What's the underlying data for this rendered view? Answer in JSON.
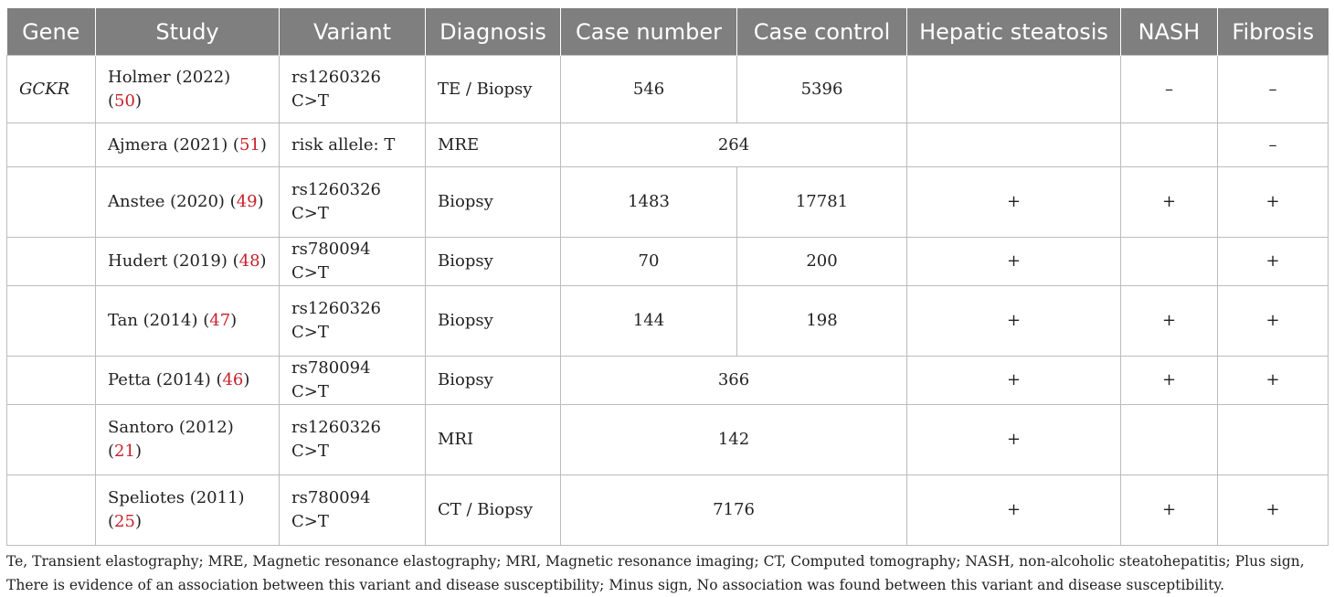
{
  "headers": [
    "Gene",
    "Study",
    "Variant",
    "Diagnosis",
    "Case number",
    "Case control",
    "Hepatic steatosis",
    "NASH",
    "Fibrosis"
  ],
  "rows": [
    {
      "gene": "GCKR",
      "author": "Holmer (2022) (",
      "ref": "50",
      "close": ")",
      "variant": "rs1260326 C>T",
      "diagnosis": "TE / Biopsy",
      "case_number": "546",
      "case_control": "5396",
      "steatosis": "",
      "nash": "–",
      "fibrosis": "–"
    },
    {
      "gene": "",
      "author": "Ajmera (2021) (",
      "ref": "51",
      "close": ")",
      "variant": "risk allele: T",
      "diagnosis": "MRE",
      "combined": "264",
      "steatosis": "",
      "nash": "",
      "fibrosis": "–"
    },
    {
      "gene": "",
      "author": "Anstee (2020) (",
      "ref": "49",
      "close": ")",
      "variant": "rs1260326 C>T",
      "diagnosis": "Biopsy",
      "case_number": "1483",
      "case_control": "17781",
      "steatosis": "+",
      "nash": "+",
      "fibrosis": "+"
    },
    {
      "gene": "",
      "author": "Hudert (2019) (",
      "ref": "48",
      "close": ")",
      "variant": "rs780094 C>T",
      "diagnosis": "Biopsy",
      "case_number": "70",
      "case_control": "200",
      "steatosis": "+",
      "nash": "",
      "fibrosis": "+"
    },
    {
      "gene": "",
      "author": "Tan (2014) (",
      "ref": "47",
      "close": ")",
      "variant": "rs1260326 C>T",
      "diagnosis": "Biopsy",
      "case_number": "144",
      "case_control": "198",
      "steatosis": "+",
      "nash": "+",
      "fibrosis": "+"
    },
    {
      "gene": "",
      "author": "Petta (2014) (",
      "ref": "46",
      "close": ")",
      "variant": "rs780094 C>T",
      "diagnosis": "Biopsy",
      "combined": "366",
      "steatosis": "+",
      "nash": "+",
      "fibrosis": "+"
    },
    {
      "gene": "",
      "author": "Santoro (2012) (",
      "ref": "21",
      "close": ")",
      "variant": "rs1260326 C>T",
      "diagnosis": "MRI",
      "combined": "142",
      "steatosis": "+",
      "nash": "",
      "fibrosis": ""
    },
    {
      "gene": "",
      "author": "Speliotes (2011) (",
      "ref": "25",
      "close": ")",
      "variant": "rs780094 C>T",
      "diagnosis": "CT / Biopsy",
      "combined": "7176",
      "steatosis": "+",
      "nash": "+",
      "fibrosis": "+"
    }
  ],
  "footnote": "Te, Transient elastography; MRE, Magnetic resonance elastography; MRI, Magnetic resonance imaging; CT, Computed tomography; NASH, non-alcoholic steatohepatitis; Plus sign, There is evidence of an association between this variant and disease susceptibility; Minus sign, No association was found between this variant and disease susceptibility."
}
